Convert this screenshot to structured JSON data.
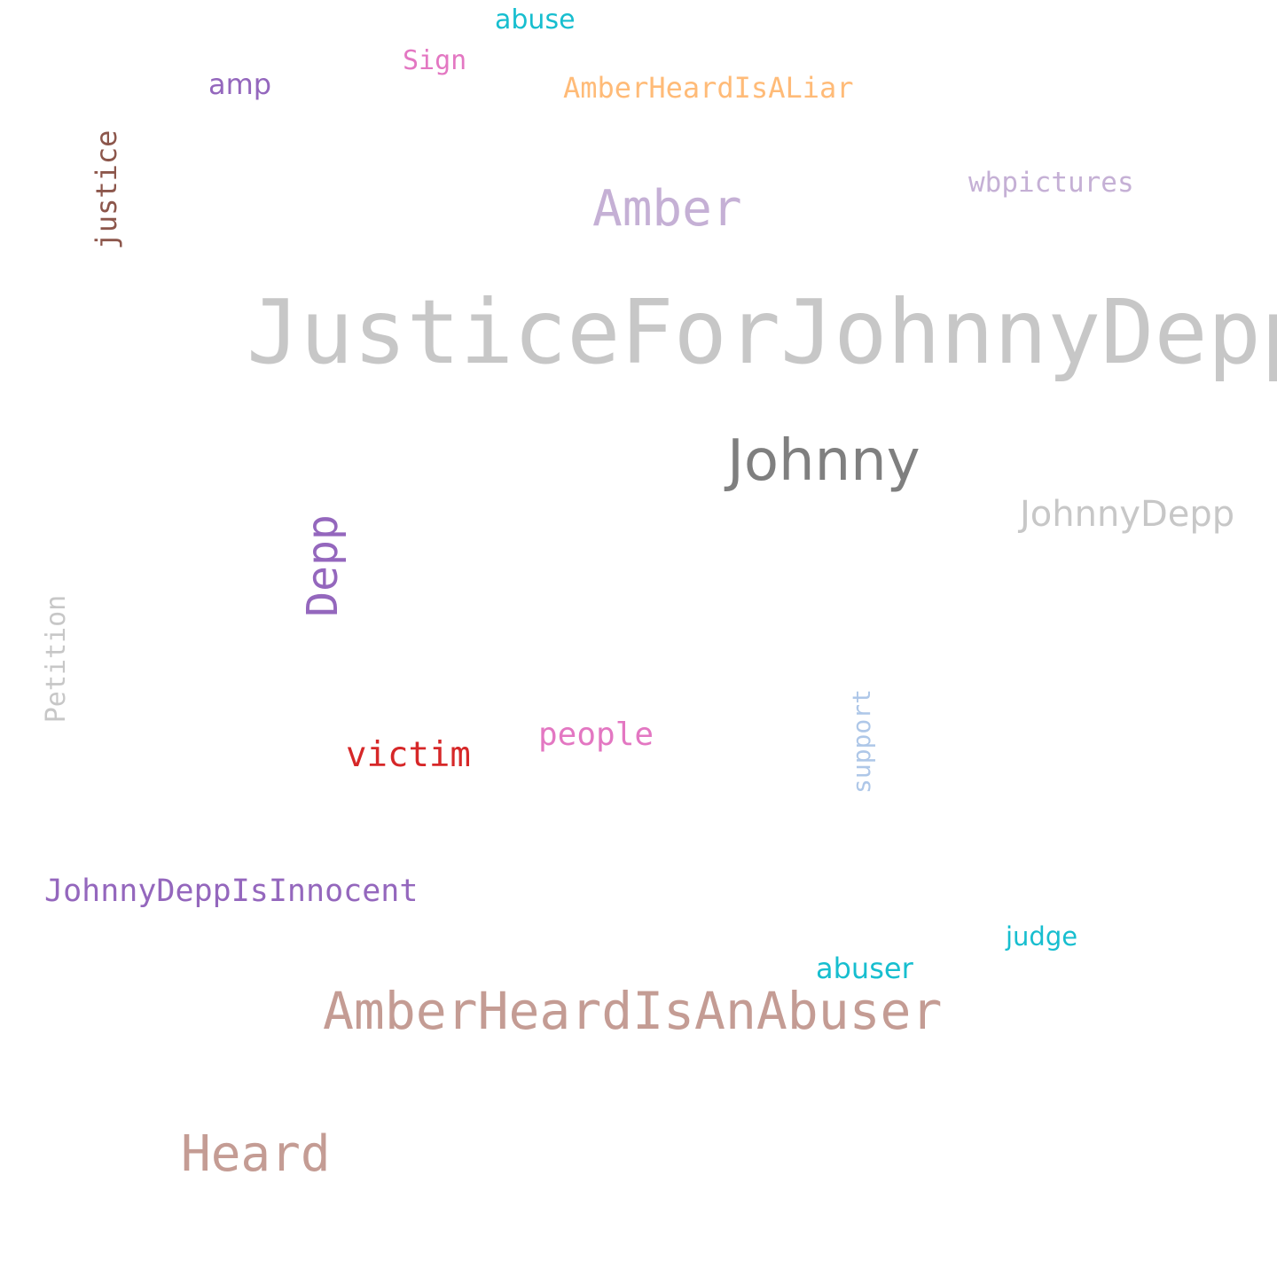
{
  "words": [
    {
      "key": "justiceforjohnnydepp",
      "text": "JusticeForJohnnyDepp",
      "color": "#c7c7c7"
    },
    {
      "key": "johnny",
      "text": "Johnny",
      "color": "#7f7f7f"
    },
    {
      "key": "amberheardisanabuser",
      "text": "AmberHeardIsAnAbuser",
      "color": "#c49c94"
    },
    {
      "key": "amber",
      "text": "Amber",
      "color": "#c5b0d5"
    },
    {
      "key": "heard",
      "text": "Heard",
      "color": "#c49c94"
    },
    {
      "key": "depp",
      "text": "Depp",
      "color": "#9467bd"
    },
    {
      "key": "johnnydepp",
      "text": "JohnnyDepp",
      "color": "#c7c7c7"
    },
    {
      "key": "johnnydeppisinnocent",
      "text": "JohnnyDeppIsInnocent",
      "color": "#9467bd"
    },
    {
      "key": "victim",
      "text": "victim",
      "color": "#d62728"
    },
    {
      "key": "people",
      "text": "people",
      "color": "#e377c2"
    },
    {
      "key": "amberheardisaliar",
      "text": "AmberHeardIsALiar",
      "color": "#ffbb78"
    },
    {
      "key": "wbpictures",
      "text": "wbpictures",
      "color": "#c5b0d5"
    },
    {
      "key": "justice",
      "text": "justice",
      "color": "#8c564b"
    },
    {
      "key": "petition",
      "text": "Petition",
      "color": "#c7c7c7"
    },
    {
      "key": "support",
      "text": "support",
      "color": "#aec7e8"
    },
    {
      "key": "abuser",
      "text": "abuser",
      "color": "#17becf"
    },
    {
      "key": "judge",
      "text": "judge",
      "color": "#17becf"
    },
    {
      "key": "amp",
      "text": "amp",
      "color": "#9467bd"
    },
    {
      "key": "sign",
      "text": "Sign",
      "color": "#e377c2"
    },
    {
      "key": "abuse",
      "text": "abuse",
      "color": "#17becf"
    }
  ]
}
